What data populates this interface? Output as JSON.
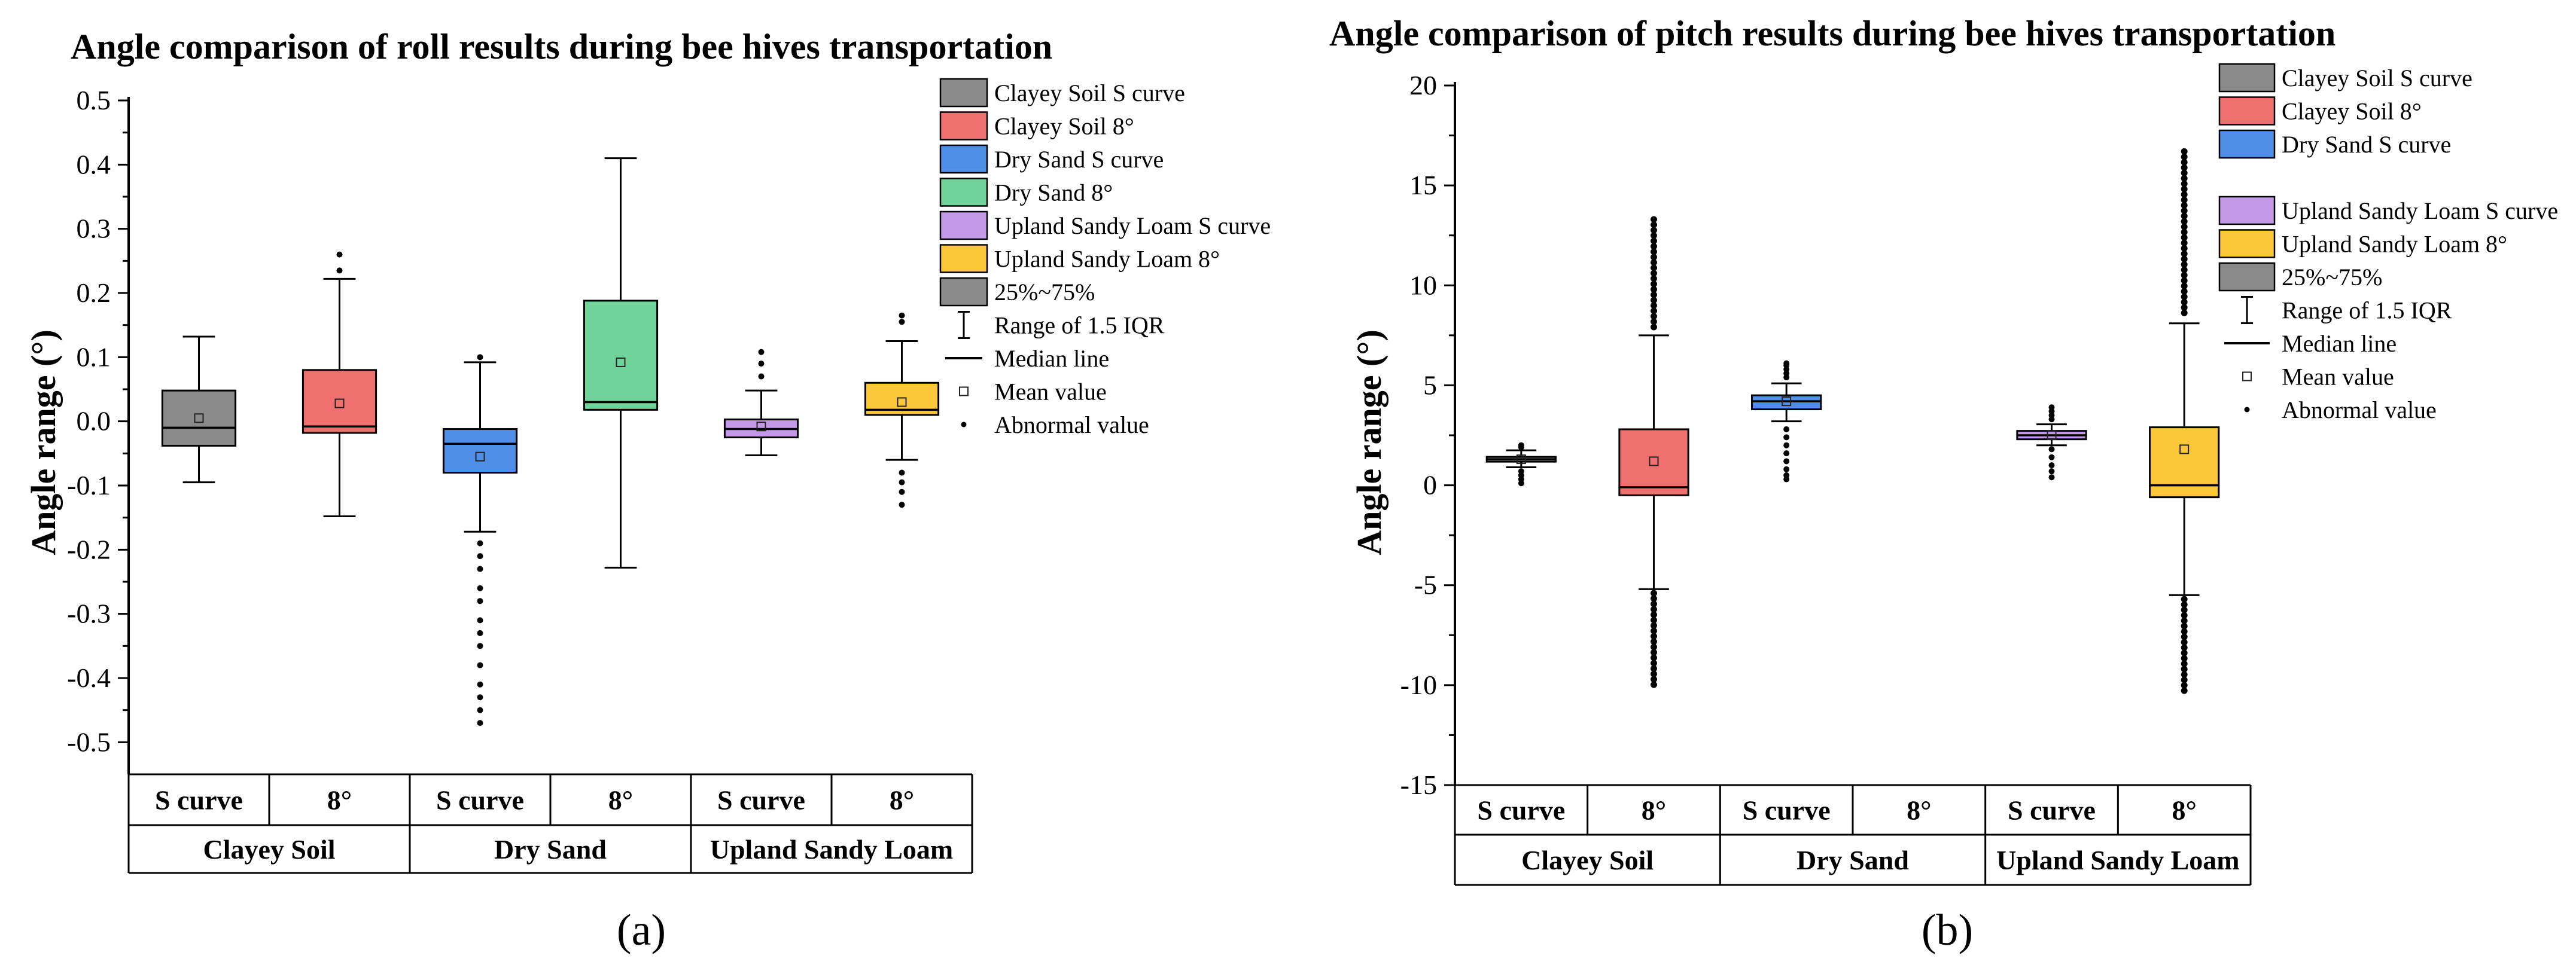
{
  "colors": {
    "clayey_s": "#8a8a8a",
    "clayey_8": "#f07070",
    "dry_s": "#4f8fe8",
    "dry_8": "#6fd39a",
    "upland_s": "#c49ae8",
    "upland_8": "#fcc83a",
    "iqr": "#8a8a8a"
  },
  "chart_data": [
    {
      "id": "a",
      "type": "box",
      "panel_label": "(a)",
      "title": "Angle comparison of roll results during bee hives transportation",
      "ylabel": "Angle range (°)",
      "xlabel": "",
      "ylim": [
        -0.55,
        0.5
      ],
      "yticks": [
        0.5,
        0.4,
        0.3,
        0.2,
        0.1,
        0.0,
        -0.1,
        -0.2,
        -0.3,
        -0.4,
        -0.5
      ],
      "ytick_labels": [
        "0.5",
        "0.4",
        "0.3",
        "0.2",
        "0.1",
        "0.0",
        "-0.1",
        "-0.2",
        "-0.3",
        "-0.4",
        "-0.5"
      ],
      "groups": [
        "Clayey Soil",
        "Dry Sand",
        "Upland Sandy Loam"
      ],
      "categories": [
        "S curve",
        "8°",
        "S curve",
        "8°",
        "S curve",
        "8°"
      ],
      "legend_position": "top-right",
      "legend": [
        {
          "type": "box",
          "color_key": "clayey_s",
          "label": "Clayey Soil S curve"
        },
        {
          "type": "box",
          "color_key": "clayey_8",
          "label": "Clayey Soil 8°"
        },
        {
          "type": "box",
          "color_key": "dry_s",
          "label": "Dry Sand S curve"
        },
        {
          "type": "box",
          "color_key": "dry_8",
          "label": "Dry Sand 8°"
        },
        {
          "type": "box",
          "color_key": "upland_s",
          "label": "Upland Sandy Loam S curve"
        },
        {
          "type": "box",
          "color_key": "upland_8",
          "label": "Upland Sandy Loam 8°"
        },
        {
          "type": "box",
          "color_key": "iqr",
          "label": "25%~75%"
        },
        {
          "type": "range",
          "label": "Range of 1.5 IQR"
        },
        {
          "type": "line",
          "label": "Median line"
        },
        {
          "type": "mean",
          "label": "Mean value"
        },
        {
          "type": "dot",
          "label": "Abnormal value"
        }
      ],
      "series": [
        {
          "color_key": "clayey_s",
          "q1": -0.038,
          "median": -0.01,
          "q3": 0.048,
          "whisker_low": -0.095,
          "whisker_high": 0.132,
          "mean": 0.005,
          "outliers": []
        },
        {
          "color_key": "clayey_8",
          "q1": -0.018,
          "median": -0.008,
          "q3": 0.08,
          "whisker_low": -0.148,
          "whisker_high": 0.222,
          "mean": 0.028,
          "outliers": [
            0.235,
            0.26
          ]
        },
        {
          "color_key": "dry_s",
          "q1": -0.08,
          "median": -0.035,
          "q3": -0.012,
          "whisker_low": -0.172,
          "whisker_high": 0.092,
          "mean": -0.055,
          "outliers": [
            0.1,
            -0.19,
            -0.21,
            -0.23,
            -0.26,
            -0.28,
            -0.31,
            -0.33,
            -0.35,
            -0.38,
            -0.41,
            -0.43,
            -0.45,
            -0.47
          ]
        },
        {
          "color_key": "dry_8",
          "q1": 0.018,
          "median": 0.03,
          "q3": 0.188,
          "whisker_low": -0.228,
          "whisker_high": 0.41,
          "mean": 0.092,
          "outliers": []
        },
        {
          "color_key": "upland_s",
          "q1": -0.025,
          "median": -0.012,
          "q3": 0.003,
          "whisker_low": -0.053,
          "whisker_high": 0.048,
          "mean": -0.008,
          "outliers": [
            0.07,
            0.09,
            0.108
          ]
        },
        {
          "color_key": "upland_8",
          "q1": 0.01,
          "median": 0.018,
          "q3": 0.06,
          "whisker_low": -0.06,
          "whisker_high": 0.125,
          "mean": 0.03,
          "outliers": [
            0.155,
            0.165,
            -0.08,
            -0.095,
            -0.11,
            -0.13
          ]
        }
      ]
    },
    {
      "id": "b",
      "type": "box",
      "panel_label": "(b)",
      "title": "Angle comparison of pitch results during bee hives transportation",
      "ylabel": "Angle range (°)",
      "xlabel": "",
      "ylim": [
        -15,
        20
      ],
      "yticks": [
        20,
        15,
        10,
        5,
        0,
        -5,
        -10,
        -15
      ],
      "ytick_labels": [
        "20",
        "15",
        "10",
        "5",
        "0",
        "-5",
        "-10",
        "-15"
      ],
      "groups": [
        "Clayey Soil",
        "Dry Sand",
        "Upland Sandy Loam"
      ],
      "categories": [
        "S curve",
        "8°",
        "S curve",
        "8°",
        "S curve",
        "8°"
      ],
      "legend_position": "top-right",
      "legend": [
        {
          "type": "box",
          "color_key": "clayey_s",
          "label": "Clayey Soil S curve"
        },
        {
          "type": "box",
          "color_key": "clayey_8",
          "label": "Clayey Soil 8°"
        },
        {
          "type": "box",
          "color_key": "dry_s",
          "label": "Dry Sand S curve"
        },
        {
          "type": "gap",
          "label": ""
        },
        {
          "type": "box",
          "color_key": "upland_s",
          "label": "Upland Sandy Loam S curve"
        },
        {
          "type": "box",
          "color_key": "upland_8",
          "label": "Upland Sandy Loam 8°"
        },
        {
          "type": "box",
          "color_key": "iqr",
          "label": "25%~75%"
        },
        {
          "type": "range",
          "label": "Range of 1.5 IQR"
        },
        {
          "type": "line",
          "label": "Median line"
        },
        {
          "type": "mean",
          "label": "Mean value"
        },
        {
          "type": "dot",
          "label": "Abnormal value"
        }
      ],
      "series": [
        {
          "color_key": "clayey_s",
          "q1": 1.18,
          "median": 1.3,
          "q3": 1.42,
          "whisker_low": 0.9,
          "whisker_high": 1.75,
          "mean": 1.3,
          "outliers": [
            2.0,
            1.9,
            0.7,
            0.5,
            0.3,
            0.1
          ],
          "outlier_band": null
        },
        {
          "color_key": "clayey_8",
          "q1": -0.5,
          "median": -0.1,
          "q3": 2.8,
          "whisker_low": -5.2,
          "whisker_high": 7.5,
          "mean": 1.2,
          "outliers": [],
          "outlier_band": {
            "upper": [
              7.7,
              13.3
            ],
            "lower": [
              -10.2,
              -5.4
            ]
          }
        },
        {
          "color_key": "dry_s",
          "q1": 3.8,
          "median": 4.2,
          "q3": 4.5,
          "whisker_low": 3.2,
          "whisker_high": 5.1,
          "mean": 4.2,
          "outliers": [
            5.4,
            5.6,
            5.8,
            6.0,
            6.1,
            2.8,
            2.4,
            2.0,
            1.6,
            1.2,
            0.8,
            0.5,
            0.3
          ],
          "outlier_band": null
        },
        {
          "color_key": "dry_8",
          "q1": null,
          "median": null,
          "q3": null,
          "whisker_low": null,
          "whisker_high": null,
          "mean": null,
          "outliers": [],
          "outlier_band": null
        },
        {
          "color_key": "upland_s",
          "q1": 2.3,
          "median": 2.5,
          "q3": 2.72,
          "whisker_low": 2.0,
          "whisker_high": 3.05,
          "mean": 2.5,
          "outliers": [
            3.3,
            3.5,
            3.7,
            3.9,
            1.8,
            1.4,
            1.0,
            0.7,
            0.4
          ],
          "outlier_band": null
        },
        {
          "color_key": "upland_8",
          "q1": -0.6,
          "median": 0.0,
          "q3": 2.9,
          "whisker_low": -5.5,
          "whisker_high": 8.1,
          "mean": 1.8,
          "outliers": [],
          "outlier_band": {
            "upper": [
              8.4,
              16.7
            ],
            "lower": [
              -10.4,
              -5.7
            ]
          }
        }
      ]
    }
  ]
}
